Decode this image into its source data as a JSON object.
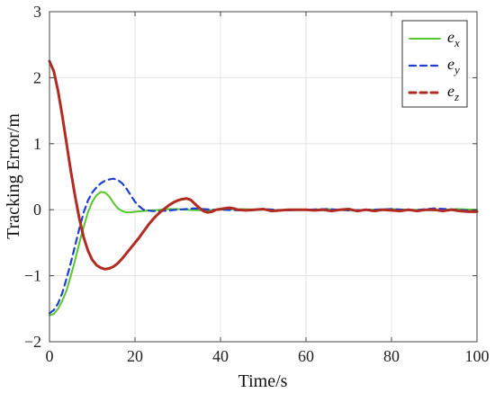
{
  "chart_data": {
    "type": "line",
    "xlabel": "Time/s",
    "ylabel": "Tracking Error/m",
    "xlim": [
      0,
      100
    ],
    "ylim": [
      -2,
      3
    ],
    "xticks": [
      0,
      20,
      40,
      60,
      80,
      100
    ],
    "yticks": [
      -2,
      -1,
      0,
      1,
      2,
      3
    ],
    "grid": true,
    "legend_position": "top-right",
    "series": [
      {
        "name": "e",
        "subscript": "x",
        "color": "#55c82c",
        "style": "solid",
        "points": [
          [
            0,
            -1.6
          ],
          [
            1,
            -1.58
          ],
          [
            2,
            -1.5
          ],
          [
            3,
            -1.38
          ],
          [
            4,
            -1.22
          ],
          [
            5,
            -1.0
          ],
          [
            6,
            -0.76
          ],
          [
            7,
            -0.5
          ],
          [
            8,
            -0.26
          ],
          [
            9,
            -0.04
          ],
          [
            10,
            0.12
          ],
          [
            11,
            0.22
          ],
          [
            12,
            0.27
          ],
          [
            13,
            0.26
          ],
          [
            14,
            0.2
          ],
          [
            15,
            0.1
          ],
          [
            16,
            0.02
          ],
          [
            17,
            -0.02
          ],
          [
            18,
            -0.04
          ],
          [
            19,
            -0.04
          ],
          [
            20,
            -0.03
          ],
          [
            22,
            -0.02
          ],
          [
            24,
            -0.01
          ],
          [
            26,
            0.0
          ],
          [
            28,
            0.01
          ],
          [
            30,
            0.01
          ],
          [
            32,
            0.0
          ],
          [
            35,
            -0.01
          ],
          [
            40,
            0.0
          ],
          [
            45,
            0.01
          ],
          [
            50,
            0.0
          ],
          [
            55,
            -0.01
          ],
          [
            60,
            0.0
          ],
          [
            65,
            0.01
          ],
          [
            70,
            -0.01
          ],
          [
            75,
            0.0
          ],
          [
            80,
            0.01
          ],
          [
            85,
            0.0
          ],
          [
            90,
            -0.01
          ],
          [
            95,
            0.01
          ],
          [
            100,
            0.0
          ]
        ]
      },
      {
        "name": "e",
        "subscript": "y",
        "color": "#1f3fd0",
        "style": "dashed",
        "points": [
          [
            0,
            -1.57
          ],
          [
            1,
            -1.52
          ],
          [
            2,
            -1.42
          ],
          [
            3,
            -1.26
          ],
          [
            4,
            -1.04
          ],
          [
            5,
            -0.8
          ],
          [
            6,
            -0.54
          ],
          [
            7,
            -0.28
          ],
          [
            8,
            -0.04
          ],
          [
            9,
            0.14
          ],
          [
            10,
            0.26
          ],
          [
            11,
            0.34
          ],
          [
            12,
            0.4
          ],
          [
            13,
            0.44
          ],
          [
            14,
            0.46
          ],
          [
            15,
            0.47
          ],
          [
            16,
            0.45
          ],
          [
            17,
            0.4
          ],
          [
            18,
            0.32
          ],
          [
            19,
            0.22
          ],
          [
            20,
            0.12
          ],
          [
            21,
            0.05
          ],
          [
            22,
            0.0
          ],
          [
            24,
            -0.02
          ],
          [
            26,
            -0.02
          ],
          [
            28,
            -0.01
          ],
          [
            30,
            0.0
          ],
          [
            32,
            0.01
          ],
          [
            34,
            0.02
          ],
          [
            36,
            0.01
          ],
          [
            38,
            0.0
          ],
          [
            40,
            0.0
          ],
          [
            45,
            -0.01
          ],
          [
            50,
            0.01
          ],
          [
            55,
            -0.01
          ],
          [
            60,
            0.0
          ],
          [
            65,
            0.01
          ],
          [
            70,
            -0.01
          ],
          [
            75,
            0.0
          ],
          [
            80,
            0.01
          ],
          [
            85,
            -0.01
          ],
          [
            90,
            0.02
          ],
          [
            95,
            0.0
          ],
          [
            100,
            -0.02
          ]
        ]
      },
      {
        "name": "e",
        "subscript": "z",
        "color": "#b22a22",
        "style": "solid-heavy",
        "points": [
          [
            0,
            2.25
          ],
          [
            1,
            2.1
          ],
          [
            2,
            1.8
          ],
          [
            3,
            1.42
          ],
          [
            4,
            1.0
          ],
          [
            5,
            0.58
          ],
          [
            6,
            0.2
          ],
          [
            7,
            -0.14
          ],
          [
            8,
            -0.42
          ],
          [
            9,
            -0.62
          ],
          [
            10,
            -0.76
          ],
          [
            11,
            -0.84
          ],
          [
            12,
            -0.88
          ],
          [
            13,
            -0.9
          ],
          [
            14,
            -0.89
          ],
          [
            15,
            -0.86
          ],
          [
            16,
            -0.81
          ],
          [
            17,
            -0.74
          ],
          [
            18,
            -0.66
          ],
          [
            19,
            -0.58
          ],
          [
            20,
            -0.5
          ],
          [
            21,
            -0.42
          ],
          [
            22,
            -0.33
          ],
          [
            23,
            -0.24
          ],
          [
            24,
            -0.16
          ],
          [
            25,
            -0.09
          ],
          [
            26,
            -0.03
          ],
          [
            27,
            0.02
          ],
          [
            28,
            0.07
          ],
          [
            29,
            0.11
          ],
          [
            30,
            0.14
          ],
          [
            31,
            0.16
          ],
          [
            32,
            0.17
          ],
          [
            33,
            0.15
          ],
          [
            34,
            0.09
          ],
          [
            35,
            0.03
          ],
          [
            36,
            -0.02
          ],
          [
            37,
            -0.04
          ],
          [
            38,
            -0.03
          ],
          [
            39,
            0.0
          ],
          [
            40,
            0.01
          ],
          [
            41,
            0.02
          ],
          [
            42,
            0.03
          ],
          [
            43,
            0.02
          ],
          [
            44,
            0.0
          ],
          [
            46,
            -0.01
          ],
          [
            48,
            0.0
          ],
          [
            50,
            0.01
          ],
          [
            52,
            -0.02
          ],
          [
            54,
            -0.01
          ],
          [
            56,
            0.0
          ],
          [
            58,
            0.0
          ],
          [
            60,
            0.0
          ],
          [
            62,
            -0.01
          ],
          [
            64,
            0.0
          ],
          [
            66,
            -0.02
          ],
          [
            68,
            0.0
          ],
          [
            70,
            0.01
          ],
          [
            72,
            -0.02
          ],
          [
            74,
            0.0
          ],
          [
            76,
            -0.02
          ],
          [
            78,
            0.0
          ],
          [
            80,
            -0.01
          ],
          [
            82,
            -0.02
          ],
          [
            84,
            0.0
          ],
          [
            86,
            -0.02
          ],
          [
            88,
            0.0
          ],
          [
            90,
            0.0
          ],
          [
            92,
            -0.02
          ],
          [
            94,
            0.0
          ],
          [
            96,
            -0.02
          ],
          [
            98,
            -0.03
          ],
          [
            100,
            -0.03
          ]
        ]
      }
    ]
  }
}
